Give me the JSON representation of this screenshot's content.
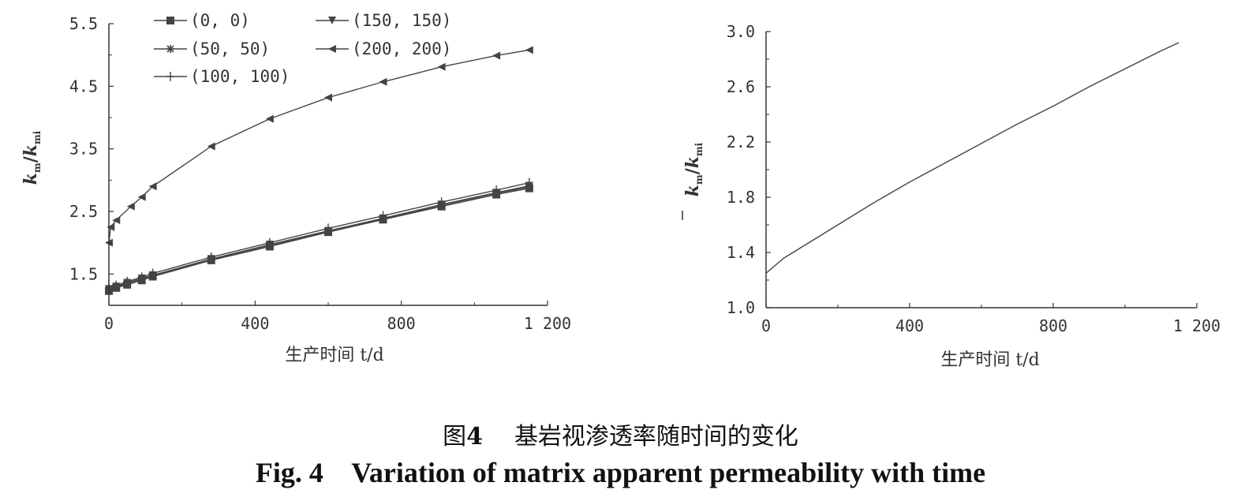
{
  "chart_data": [
    {
      "type": "line",
      "ylabel_main": "k",
      "ylabel_sub": "m",
      "ylabel_main2": "k",
      "ylabel_sub2": "mi",
      "xlabel": "生产时间 t/d",
      "xlim": [
        0,
        1200
      ],
      "ylim": [
        1.0,
        5.5
      ],
      "xticks": [
        0,
        400,
        800,
        1200
      ],
      "xtick_labels": [
        "0",
        "400",
        "800",
        "1 200"
      ],
      "yticks": [
        1.5,
        2.5,
        3.5,
        4.5,
        5.5
      ],
      "ytick_labels": [
        "1.5",
        "2.5",
        "3.5",
        "4.5",
        "5.5"
      ],
      "grid": false,
      "legend_position": "top",
      "series": [
        {
          "name": "(0, 0)",
          "marker": "square",
          "x": [
            0,
            20,
            50,
            90,
            120,
            280,
            440,
            600,
            750,
            910,
            1060,
            1150
          ],
          "y": [
            1.23,
            1.28,
            1.33,
            1.4,
            1.46,
            1.72,
            1.94,
            2.17,
            2.37,
            2.58,
            2.77,
            2.87
          ]
        },
        {
          "name": "(150, 150)",
          "marker": "triangle-down",
          "x": [
            0,
            20,
            50,
            90,
            120,
            280,
            440,
            600,
            750,
            910,
            1060,
            1150
          ],
          "y": [
            1.26,
            1.3,
            1.36,
            1.43,
            1.48,
            1.74,
            1.97,
            2.19,
            2.39,
            2.61,
            2.8,
            2.91
          ]
        },
        {
          "name": "(50, 50)",
          "marker": "asterisk",
          "x": [
            0,
            20,
            50,
            90,
            120,
            280,
            440,
            600,
            750,
            910,
            1060,
            1150
          ],
          "y": [
            1.25,
            1.29,
            1.35,
            1.42,
            1.47,
            1.73,
            1.96,
            2.18,
            2.38,
            2.6,
            2.79,
            2.89
          ]
        },
        {
          "name": "(200, 200)",
          "marker": "triangle-left",
          "x": [
            0,
            5,
            20,
            60,
            90,
            120,
            280,
            440,
            600,
            750,
            910,
            1060,
            1150
          ],
          "y": [
            2.0,
            2.25,
            2.36,
            2.58,
            2.73,
            2.9,
            3.54,
            3.98,
            4.32,
            4.57,
            4.81,
            4.99,
            5.08
          ]
        },
        {
          "name": "(100, 100)",
          "marker": "plus",
          "x": [
            0,
            20,
            50,
            90,
            120,
            280,
            440,
            600,
            750,
            910,
            1060,
            1150
          ],
          "y": [
            1.28,
            1.32,
            1.38,
            1.45,
            1.51,
            1.77,
            2.0,
            2.23,
            2.43,
            2.65,
            2.84,
            2.96
          ]
        }
      ]
    },
    {
      "type": "line",
      "ylabel_main": "k",
      "ylabel_sub": "m",
      "ylabel_main2": "k",
      "ylabel_sub2": "mi",
      "xlabel": "生产时间 t/d",
      "xlim": [
        0,
        1200
      ],
      "ylim": [
        1.0,
        3.0
      ],
      "xticks": [
        0,
        400,
        800,
        1200
      ],
      "xtick_labels": [
        "0",
        "400",
        "800",
        "1 200"
      ],
      "yticks": [
        1.0,
        1.4,
        1.8,
        2.2,
        2.6,
        3.0
      ],
      "ytick_labels": [
        "1.0",
        "1.4",
        "1.8",
        "2.2",
        "2.6",
        "3.0"
      ],
      "grid": false,
      "series": [
        {
          "x": [
            0,
            50,
            100,
            200,
            300,
            400,
            500,
            600,
            700,
            800,
            900,
            1000,
            1100,
            1150
          ],
          "y": [
            1.25,
            1.36,
            1.44,
            1.6,
            1.76,
            1.91,
            2.05,
            2.19,
            2.33,
            2.46,
            2.6,
            2.73,
            2.86,
            2.92
          ]
        }
      ]
    }
  ],
  "caption": {
    "zh_prefix": "图",
    "zh_number": "4",
    "zh_text": "基岩视渗透率随时间的变化",
    "en": "Fig. 4    Variation of matrix apparent permeability with time"
  },
  "colors": {
    "line": "#444444",
    "axis": "#333333",
    "text": "#222222"
  }
}
